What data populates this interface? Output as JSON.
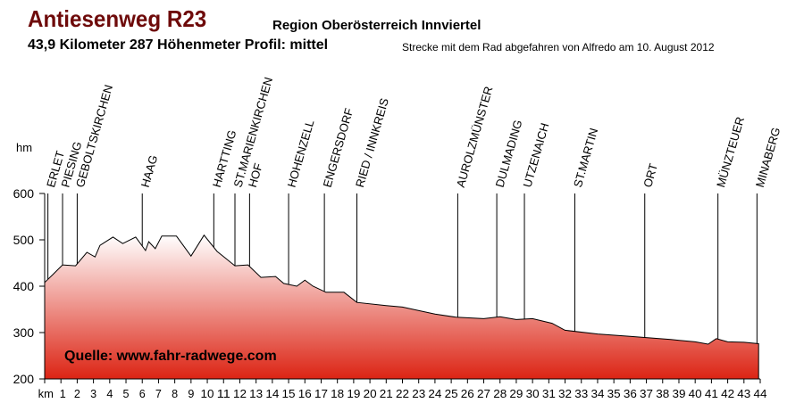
{
  "header": {
    "title": "Antiesenweg R23",
    "region": "Region Oberösterreich Innviertel",
    "stats": "43,9 Kilometer  287 Höhenmeter  Profil: mittel",
    "rider_note": "Strecke mit dem Rad abgefahren von Alfredo am 10. August 2012"
  },
  "colors": {
    "title": "#6e0a0a",
    "fill_top": "#ffffff",
    "fill_bottom": "#dc2414",
    "line": "#000000"
  },
  "chart_data": {
    "type": "area",
    "title": "Antiesenweg R23",
    "xlabel": "km",
    "ylabel": "hm",
    "xlim": [
      0,
      44
    ],
    "ylim": [
      200,
      600
    ],
    "yticks": [
      200,
      300,
      400,
      500,
      600
    ],
    "xticks": [
      1,
      2,
      3,
      4,
      5,
      6,
      7,
      8,
      9,
      10,
      11,
      12,
      13,
      14,
      15,
      16,
      17,
      18,
      19,
      20,
      21,
      22,
      23,
      24,
      25,
      26,
      27,
      28,
      29,
      30,
      31,
      32,
      33,
      34,
      35,
      36,
      37,
      38,
      39,
      40,
      41,
      42,
      43,
      44
    ],
    "watermark": "Quelle: www.fahr-radwege.com",
    "profile": [
      [
        0,
        408
      ],
      [
        0.5,
        425
      ],
      [
        1.1,
        446
      ],
      [
        1.9,
        444
      ],
      [
        2.6,
        473
      ],
      [
        3.1,
        463
      ],
      [
        3.4,
        488
      ],
      [
        4.2,
        506
      ],
      [
        4.8,
        492
      ],
      [
        5.6,
        506
      ],
      [
        6.2,
        477
      ],
      [
        6.4,
        496
      ],
      [
        6.8,
        481
      ],
      [
        7.2,
        508
      ],
      [
        8.1,
        508
      ],
      [
        9.0,
        465
      ],
      [
        9.8,
        510
      ],
      [
        10.6,
        475
      ],
      [
        11.7,
        444
      ],
      [
        12.5,
        446
      ],
      [
        13.3,
        419
      ],
      [
        14.2,
        421
      ],
      [
        14.7,
        406
      ],
      [
        15.5,
        400
      ],
      [
        16.0,
        413
      ],
      [
        16.5,
        400
      ],
      [
        17.3,
        387
      ],
      [
        18.4,
        387
      ],
      [
        19.2,
        365
      ],
      [
        21.0,
        358
      ],
      [
        22.0,
        355
      ],
      [
        24.0,
        340
      ],
      [
        25.3,
        333
      ],
      [
        27.0,
        330
      ],
      [
        28.0,
        334
      ],
      [
        29.0,
        328
      ],
      [
        30.0,
        330
      ],
      [
        31.2,
        320
      ],
      [
        32.0,
        305
      ],
      [
        34.0,
        297
      ],
      [
        36.0,
        292
      ],
      [
        38.5,
        285
      ],
      [
        40.0,
        280
      ],
      [
        40.8,
        275
      ],
      [
        41.3,
        287
      ],
      [
        42.0,
        280
      ],
      [
        43.0,
        279
      ],
      [
        43.9,
        276
      ]
    ],
    "places": [
      {
        "name": "ERLET",
        "km": 0.2
      },
      {
        "name": "PIESING",
        "km": 1.1
      },
      {
        "name": "GEBOLTSKIRCHEN",
        "km": 2.0
      },
      {
        "name": "HAAG",
        "km": 6.0
      },
      {
        "name": "HARTTING",
        "km": 10.4
      },
      {
        "name": "ST.MARIENKIRCHEN",
        "km": 11.7
      },
      {
        "name": "HOF",
        "km": 12.6
      },
      {
        "name": "HOHENZELL",
        "km": 15.0
      },
      {
        "name": "ENGERSDORF",
        "km": 17.2
      },
      {
        "name": "RIED / INNKREIS",
        "km": 19.2
      },
      {
        "name": "AUROLZMÜNSTER",
        "km": 25.4
      },
      {
        "name": "DULMADING",
        "km": 27.8
      },
      {
        "name": "UTZENAICH",
        "km": 29.5
      },
      {
        "name": "ST.MARTIN",
        "km": 32.6
      },
      {
        "name": "ORT",
        "km": 36.9
      },
      {
        "name": "MÜNZTEUER",
        "km": 41.4
      },
      {
        "name": "MINABERG",
        "km": 43.8
      }
    ]
  }
}
